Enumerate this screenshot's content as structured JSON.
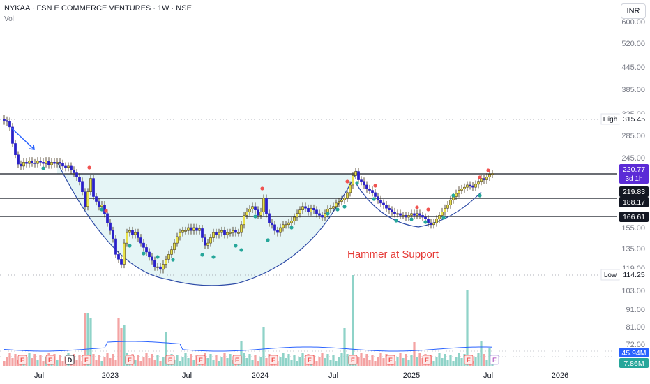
{
  "header": {
    "symbol_line": "NYKAA · FSN E COMMERCE VENTURES · 1W · NSE",
    "volume_label": "Vol",
    "currency": "INR"
  },
  "chart_data": {
    "type": "candlestick",
    "symbol": "NYKAA",
    "exchange": "NSE",
    "interval": "1W",
    "annotation": "Hammer at Support",
    "price_axis_ticks": [
      "600.00",
      "520.00",
      "445.00",
      "385.00",
      "325.00",
      "285.00",
      "245.00",
      "155.00",
      "135.00",
      "119.00",
      "103.00",
      "91.00",
      "81.00",
      "72.00"
    ],
    "time_axis_labels": [
      "Jul",
      "2023",
      "Jul",
      "2024",
      "Jul",
      "2025",
      "Jul",
      "2026"
    ],
    "price_labels": [
      {
        "text": "315.45",
        "tag": "High",
        "color": "#ffffff",
        "text_color": "#131722"
      },
      {
        "text": "220.77",
        "sub": "3d 1h",
        "color": "#5b2bd6",
        "text_color": "#ffffff"
      },
      {
        "text": "219.83",
        "color": "#131722",
        "text_color": "#ffffff"
      },
      {
        "text": "188.17",
        "color": "#131722",
        "text_color": "#ffffff"
      },
      {
        "text": "166.61",
        "color": "#131722",
        "text_color": "#ffffff"
      },
      {
        "text": "114.25",
        "tag": "Low",
        "color": "#ffffff",
        "text_color": "#131722"
      }
    ],
    "horizontal_levels": [
      220.77,
      188.17,
      166.61
    ],
    "dotted_levels": [
      315.45,
      114.25
    ],
    "volume_labels": [
      {
        "text": "45.94M",
        "color": "#2962ff"
      },
      {
        "text": "7.86M",
        "color": "#26a69a"
      }
    ],
    "event_markers": [
      "E",
      "E",
      "E",
      "E",
      "E",
      "E",
      "E",
      "E",
      "E",
      "E",
      "E",
      "E",
      "E",
      "E",
      "E",
      "E"
    ],
    "dividend_marker": "D",
    "colors": {
      "up": "#e8e14a",
      "up_border": "#3a2a12",
      "down": "#2a20c8",
      "vol_up": "#8fd3c8",
      "vol_down": "#f4a3a3",
      "teal_dot": "#26a69a",
      "red_dot": "#f05350",
      "cup_fill": "#e5f5f6",
      "curve": "#2d4aa6",
      "arrow": "#2962ff",
      "annotation": "#e53935"
    }
  }
}
